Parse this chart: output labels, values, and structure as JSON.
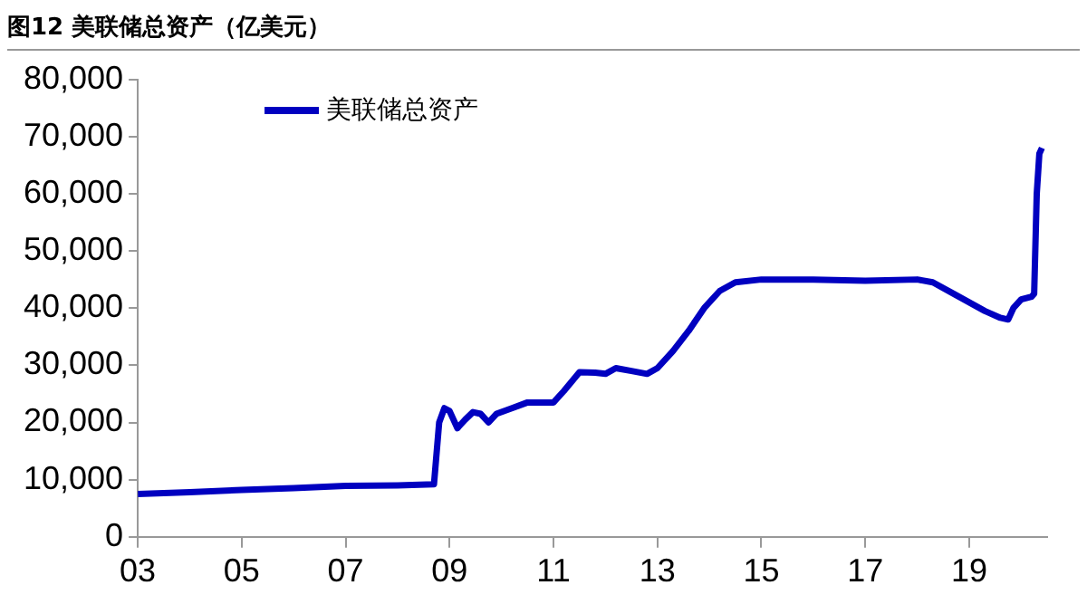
{
  "chart_data": {
    "type": "line",
    "title": "图12 美联储总资产（亿美元）",
    "x": [
      2003,
      2004,
      2005,
      2006,
      2007,
      2008,
      2008.7,
      2008.8,
      2008.9,
      2009,
      2009.15,
      2009.3,
      2009.45,
      2009.6,
      2009.75,
      2009.9,
      2010.2,
      2010.5,
      2010.8,
      2011,
      2011.2,
      2011.5,
      2011.8,
      2012,
      2012.2,
      2012.5,
      2012.8,
      2013,
      2013.3,
      2013.6,
      2013.9,
      2014.2,
      2014.5,
      2015,
      2016,
      2017,
      2018,
      2018.3,
      2018.7,
      2019,
      2019.3,
      2019.6,
      2019.75,
      2019.85,
      2020,
      2020.2,
      2020.25,
      2020.3,
      2020.35,
      2020.4
    ],
    "series": [
      {
        "name": "美联储总资产",
        "color": "#0000c0",
        "values": [
          7500,
          7800,
          8200,
          8500,
          8900,
          9000,
          9200,
          20000,
          22500,
          22000,
          19000,
          20500,
          21800,
          21500,
          20000,
          21500,
          22500,
          23500,
          23500,
          23500,
          25500,
          28800,
          28700,
          28500,
          29500,
          29000,
          28500,
          29500,
          32500,
          36000,
          40000,
          43000,
          44500,
          45000,
          45000,
          44800,
          45000,
          44500,
          42500,
          41000,
          39500,
          38300,
          38000,
          40000,
          41500,
          42000,
          42500,
          60000,
          67000,
          68000
        ]
      }
    ],
    "xlim": [
      2003,
      2020.5
    ],
    "xticks": [
      {
        "value": 2003,
        "label": "03"
      },
      {
        "value": 2005,
        "label": "05"
      },
      {
        "value": 2007,
        "label": "07"
      },
      {
        "value": 2009,
        "label": "09"
      },
      {
        "value": 2011,
        "label": "11"
      },
      {
        "value": 2013,
        "label": "13"
      },
      {
        "value": 2015,
        "label": "15"
      },
      {
        "value": 2017,
        "label": "17"
      },
      {
        "value": 2019,
        "label": "19"
      }
    ],
    "ylim": [
      0,
      80000
    ],
    "yticks": [
      {
        "value": 0,
        "label": "0"
      },
      {
        "value": 10000,
        "label": "10,000"
      },
      {
        "value": 20000,
        "label": "20,000"
      },
      {
        "value": 30000,
        "label": "30,000"
      },
      {
        "value": 40000,
        "label": "40,000"
      },
      {
        "value": 50000,
        "label": "50,000"
      },
      {
        "value": 60000,
        "label": "60,000"
      },
      {
        "value": 70000,
        "label": "70,000"
      },
      {
        "value": 80000,
        "label": "80,000"
      }
    ],
    "grid": false,
    "legend": "top left",
    "marker": "none",
    "line_style": "solid"
  }
}
